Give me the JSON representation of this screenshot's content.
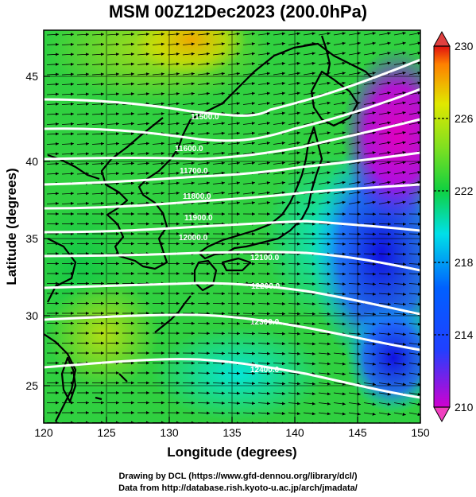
{
  "title": "MSM 00Z12Dec2023 (200.0hPa)",
  "credits": {
    "line1": "Drawing by DCL (https://www.gfd-dennou.org/library/dcl/)",
    "line2": "Data from http://database.rish.kyoto-u.ac.jp/arch/jmadata/"
  },
  "map": {
    "xlabel": "Longitude (degrees)",
    "ylabel": "Latitude  (degrees)",
    "xlim": [
      120,
      150
    ],
    "ylim": [
      22.4,
      47.6
    ],
    "x_ticks": [
      120,
      125,
      130,
      135,
      140,
      145,
      150
    ],
    "y_ticks": [
      25,
      30,
      35,
      40,
      45
    ],
    "colorbar": {
      "range": [
        210,
        230
      ],
      "tick_labels": [
        210,
        214,
        218,
        222,
        226,
        230
      ],
      "colors": [
        "#d000d0",
        "#0030ff",
        "#00d8ff",
        "#10d040",
        "#d8e800",
        "#ff8000",
        "#e01010"
      ]
    },
    "contour_labels": [
      "11500.0",
      "11600.0",
      "11700.0",
      "11800.0",
      "11900.0",
      "12000.0",
      "12100.0",
      "12200.0",
      "12300.0",
      "12400.0"
    ],
    "colors": {
      "contour": "#ffffff",
      "coastline": "#000000",
      "vector": "#000000"
    }
  }
}
